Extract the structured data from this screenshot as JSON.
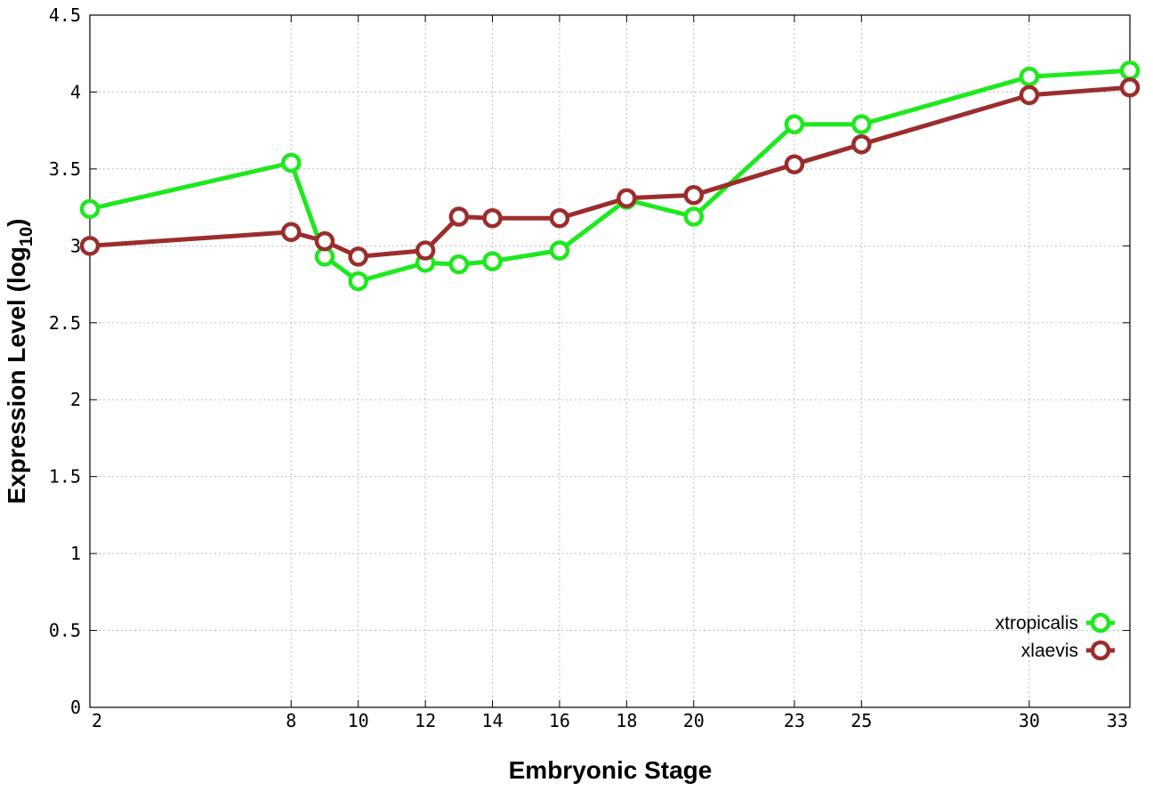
{
  "chart_data": {
    "type": "line",
    "xlabel": "Embryonic Stage",
    "ylabel_main": "Expression Level (log",
    "ylabel_sub": "10",
    "ylabel_close": ")",
    "x": [
      2,
      8,
      9,
      10,
      12,
      13,
      14,
      16,
      18,
      20,
      23,
      25,
      30,
      33
    ],
    "x_ticks": [
      2,
      8,
      10,
      12,
      14,
      16,
      18,
      20,
      23,
      25,
      30,
      33
    ],
    "x_tick_labels": [
      "2",
      "8",
      "10",
      "12",
      "14",
      "16",
      "18",
      "20",
      "23",
      "25",
      "30",
      "33"
    ],
    "xlim": [
      2,
      33
    ],
    "ylim": [
      0,
      4.5
    ],
    "y_ticks": [
      0,
      0.5,
      1,
      1.5,
      2,
      2.5,
      3,
      3.5,
      4,
      4.5
    ],
    "y_tick_labels": [
      "0",
      "0.5",
      "1",
      "1.5",
      "2",
      "2.5",
      "3",
      "3.5",
      "4",
      "4.5"
    ],
    "grid": true,
    "legend_position": "bottom-right",
    "series": [
      {
        "name": "xtropicalis",
        "color": "#1ee81e",
        "values": [
          3.24,
          3.54,
          2.93,
          2.77,
          2.89,
          2.88,
          2.9,
          2.97,
          3.3,
          3.19,
          3.79,
          3.79,
          4.1,
          4.14
        ]
      },
      {
        "name": "xlaevis",
        "color": "#9b2d2d",
        "values": [
          3.0,
          3.09,
          3.03,
          2.93,
          2.97,
          3.19,
          3.18,
          3.18,
          3.31,
          3.33,
          3.53,
          3.66,
          3.98,
          4.03
        ]
      }
    ]
  }
}
